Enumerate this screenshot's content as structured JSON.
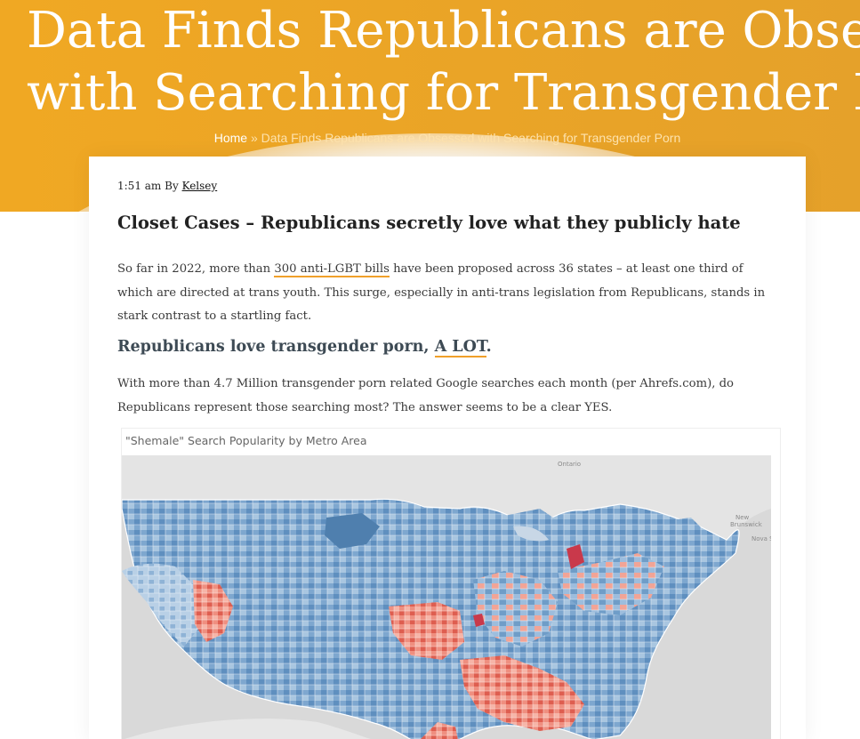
{
  "hero": {
    "title_line1": "Data Finds Republicans are Obsessed",
    "title_line2": "with Searching for Transgender Porn",
    "breadcrumb_home": "Home",
    "breadcrumb_separator": "»",
    "breadcrumb_current": "Data Finds Republicans are Obsessed with Searching for Transgender Porn"
  },
  "post": {
    "time": "1:51 am",
    "by": "By",
    "author": "Kelsey",
    "heading": "Closet Cases – Republicans secretly love what they publicly hate",
    "para1_before": "So far in 2022, more than ",
    "para1_link": "300 anti-LGBT bills",
    "para1_after": " have been proposed across 36 states – at least one third of which are directed at trans youth. This surge, especially in anti-trans legislation from Republicans, stands in stark contrast to a startling fact.",
    "subheading_before": "Republicans love transgender porn, ",
    "subheading_link": "A LOT",
    "subheading_after": ".",
    "para2": "With more than 4.7 Million transgender porn related Google searches each month (per Ahrefs.com), do Republicans represent those searching most? The answer seems to be a clear YES."
  },
  "map": {
    "title": "\"Shemale\" Search Popularity by Metro Area",
    "label_ontario": "Ontario",
    "label_new_brunswick_1": "New",
    "label_new_brunswick_2": "Brunswick",
    "label_nova": "Nova S"
  },
  "colors": {
    "accent_orange": "#f0a823",
    "map_blue": "#5b8dc0",
    "map_red": "#e8685a"
  }
}
